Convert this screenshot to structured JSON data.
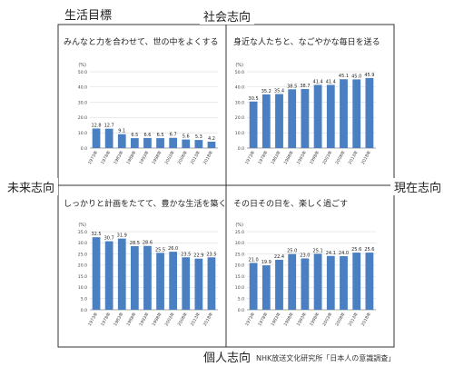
{
  "figure": {
    "title": "生活目標",
    "axes": {
      "top": "社会志向",
      "bottom": "個人志向",
      "left": "未来志向",
      "right": "現在志向"
    },
    "source": "NHK放送文化研究所「日本人の意識調査」"
  },
  "colors": {
    "bar": "#4a7fc1",
    "frame": "#333333",
    "axis": "#888888",
    "grid": "#cccccc"
  },
  "chart_data": [
    {
      "type": "bar",
      "title": "みんなと力を合わせて、世の中をよくする",
      "ylabel": "(%)",
      "ylim": [
        0,
        50
      ],
      "yticks": [
        "50.0",
        "40.0",
        "30.0",
        "20.0",
        "10.0",
        "0.0"
      ],
      "categories": [
        "1973年",
        "1978年",
        "1983年",
        "1988年",
        "1993年",
        "1998年",
        "2003年",
        "2008年",
        "2013年",
        "2018年"
      ],
      "values": [
        12.8,
        12.7,
        9.1,
        6.5,
        6.6,
        6.5,
        6.7,
        5.6,
        5.3,
        4.2
      ],
      "value_labels": [
        "12.8",
        "12.7",
        "9.1",
        "6.5",
        "6.6",
        "6.5",
        "6.7",
        "5.6",
        "5.3",
        "4.2"
      ]
    },
    {
      "type": "bar",
      "title": "身近な人たちと、なごやかな毎日を送る",
      "ylabel": "(%)",
      "ylim": [
        0,
        50
      ],
      "yticks": [
        "50.0",
        "40.0",
        "30.0",
        "20.0",
        "10.0",
        "0.0"
      ],
      "categories": [
        "1973年",
        "1978年",
        "1983年",
        "1988年",
        "1993年",
        "1998年",
        "2003年",
        "2008年",
        "2013年",
        "2018年"
      ],
      "values": [
        30.5,
        35.2,
        35.4,
        38.5,
        38.7,
        41.4,
        41.4,
        45.1,
        45.0,
        45.9
      ],
      "value_labels": [
        "30.5",
        "35.2",
        "35.4",
        "38.5",
        "38.7",
        "41.4",
        "41.4",
        "45.1",
        "45.0",
        "45.9"
      ]
    },
    {
      "type": "bar",
      "title": "しっかりと計画をたてて、豊かな生活を築く",
      "ylabel": "(%)",
      "ylim": [
        0,
        35
      ],
      "yticks": [
        "35.0",
        "30.0",
        "25.0",
        "20.0",
        "15.0",
        "10.0",
        "5.0",
        "0.0"
      ],
      "categories": [
        "1973年",
        "1978年",
        "1983年",
        "1988年",
        "1993年",
        "1998年",
        "2003年",
        "2008年",
        "2013年",
        "2018年"
      ],
      "values": [
        32.5,
        30.7,
        31.9,
        28.5,
        28.6,
        25.5,
        26.0,
        23.5,
        22.9,
        23.5
      ],
      "value_labels": [
        "32.5",
        "30.7",
        "31.9",
        "28.5",
        "28.6",
        "25.5",
        "26.0",
        "23.5",
        "22.9",
        "23.5"
      ]
    },
    {
      "type": "bar",
      "title": "その日その日を、楽しく過ごす",
      "ylabel": "(%)",
      "ylim": [
        0,
        35
      ],
      "yticks": [
        "35.0",
        "30.0",
        "25.0",
        "20.0",
        "15.0",
        "10.0",
        "5.0",
        "0.0"
      ],
      "categories": [
        "1973年",
        "1978年",
        "1983年",
        "1988年",
        "1993年",
        "1998年",
        "2003年",
        "2008年",
        "2013年",
        "2018年"
      ],
      "values": [
        21.0,
        19.9,
        22.4,
        25.0,
        23.0,
        25.1,
        24.1,
        24.0,
        25.6,
        25.6
      ],
      "value_labels": [
        "21.0",
        "19.9",
        "22.4",
        "25.0",
        "23.0",
        "25.1",
        "24.1",
        "24.0",
        "25.6",
        "25.6"
      ]
    }
  ]
}
